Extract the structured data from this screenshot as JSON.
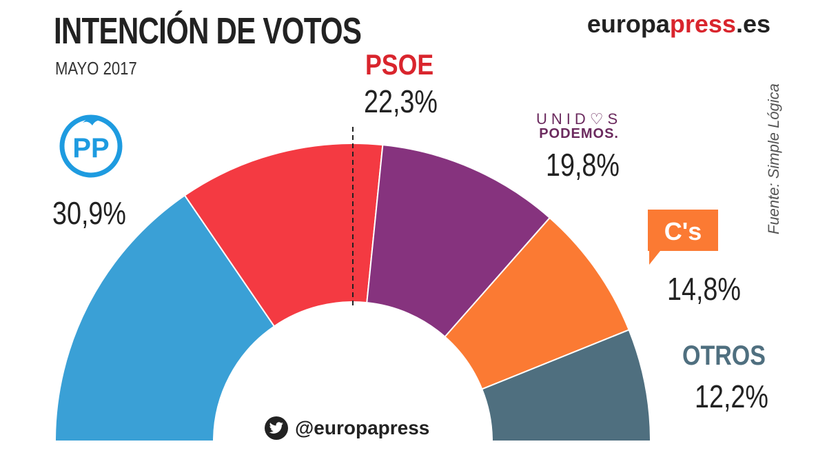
{
  "header": {
    "title": "INTENCIÓN DE VOTOS",
    "subtitle": "MAYO 2017",
    "brand_part1": "europa",
    "brand_part2": "press",
    "brand_part3": ".es",
    "source": "Fuente: Simple Lógica"
  },
  "logos": {
    "pp_text": "PP",
    "unidos_line1": "UNID♡S",
    "unidos_line2": "PODEMOS.",
    "cs_text": "C's"
  },
  "footer": {
    "handle": "@europapress",
    "icon": "twitter-bird-icon"
  },
  "chart_data": {
    "type": "pie",
    "subtype": "hemicycle",
    "title": "INTENCIÓN DE VOTOS",
    "subtitle": "MAYO 2017",
    "slices": [
      {
        "label": "PP",
        "value": 30.9,
        "display": "30,9%",
        "color": "#3aa0d6"
      },
      {
        "label": "PSOE",
        "value": 22.3,
        "display": "22,3%",
        "color": "#f43a42"
      },
      {
        "label": "UNIDOS PODEMOS",
        "value": 19.8,
        "display": "19,8%",
        "color": "#86337e"
      },
      {
        "label": "C's",
        "value": 14.8,
        "display": "14,8%",
        "color": "#fb7a33"
      },
      {
        "label": "OTROS",
        "value": 12.2,
        "display": "12,2%",
        "color": "#4f6f7f"
      }
    ],
    "majority_line": true,
    "legend": "none"
  }
}
